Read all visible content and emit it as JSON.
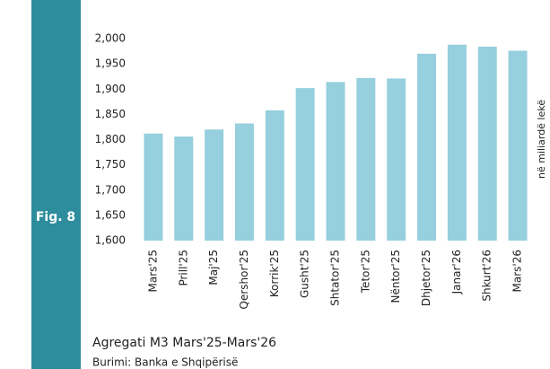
{
  "chart_data": {
    "type": "bar",
    "fig_label": "Fig. 8",
    "title": "Agregati M3 Mars'25-Mars'26",
    "source": "Burimi: Banka e Shqipërisë",
    "ylabel": "në miliardë lekë",
    "categories": [
      "Mars'25",
      "Prill'25",
      "Maj'25",
      "Qershor'25",
      "Korrik'25",
      "Gusht'25",
      "Shtator'25",
      "Tetor'25",
      "Nëntor'25",
      "Dhjetor'25",
      "Janar'26",
      "Shkurt'26",
      "Mars'26"
    ],
    "values": [
      1812,
      1806,
      1820,
      1832,
      1858,
      1902,
      1914,
      1922,
      1921,
      1970,
      1988,
      1984,
      1976
    ],
    "color": "#96cfdd",
    "ylim": [
      1600,
      2000
    ],
    "yticks": [
      {
        "value": 1600,
        "label": "1,600"
      },
      {
        "value": 1650,
        "label": "1,650"
      },
      {
        "value": 1700,
        "label": "1,700"
      },
      {
        "value": 1750,
        "label": "1,750"
      },
      {
        "value": 1800,
        "label": "1,800"
      },
      {
        "value": 1850,
        "label": "1,850"
      },
      {
        "value": 1900,
        "label": "1,900"
      },
      {
        "value": 1950,
        "label": "1,950"
      },
      {
        "value": 2000,
        "label": "2,000"
      }
    ],
    "grid": false
  }
}
